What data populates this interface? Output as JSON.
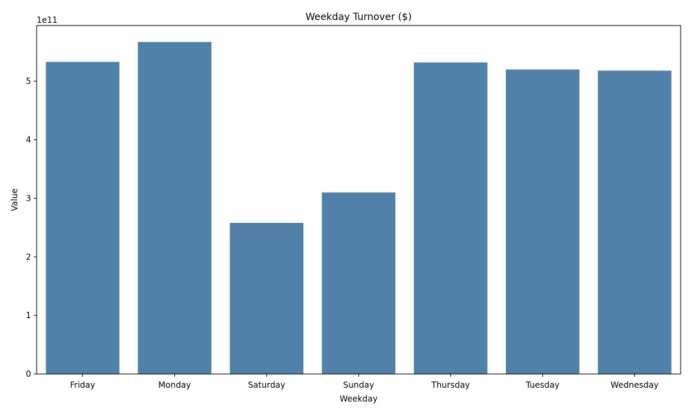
{
  "chart_data": {
    "type": "bar",
    "title": "Weekday Turnover ($)",
    "xlabel": "Weekday",
    "ylabel": "Value",
    "offset_label": "1e11",
    "categories": [
      "Friday",
      "Monday",
      "Saturday",
      "Sunday",
      "Thursday",
      "Tuesday",
      "Wednesday"
    ],
    "values": [
      533000000000,
      567000000000,
      258000000000,
      310000000000,
      532000000000,
      520000000000,
      518000000000
    ],
    "ylim": [
      0,
      595000000000
    ],
    "yticks": [
      0,
      100000000000,
      200000000000,
      300000000000,
      400000000000,
      500000000000
    ],
    "ytick_labels": [
      "0",
      "1",
      "2",
      "3",
      "4",
      "5"
    ],
    "bar_color": "#5181a8",
    "grid": false,
    "legend": "none"
  }
}
